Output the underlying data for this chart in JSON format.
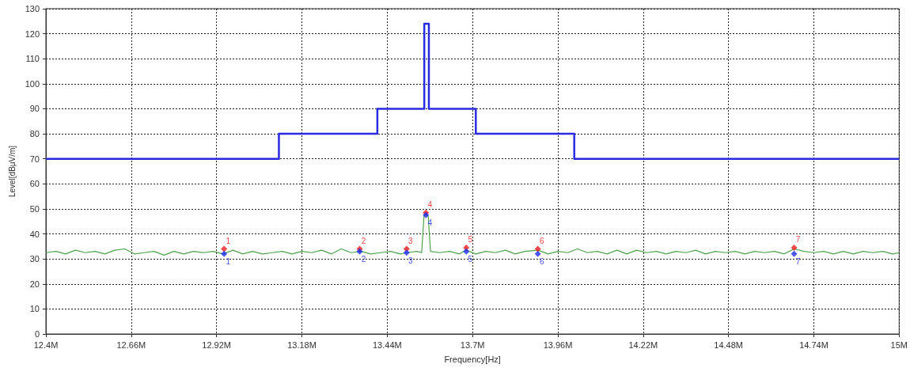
{
  "chart_data": {
    "type": "line",
    "xlabel": "Frequency[Hz]",
    "ylabel": "Level[dBμV/m]",
    "grid": true,
    "xlim": [
      12400000,
      15000000
    ],
    "xticks": [
      {
        "value": 12400000,
        "label": "12.4M"
      },
      {
        "value": 12660000,
        "label": "12.66M"
      },
      {
        "value": 12920000,
        "label": "12.92M"
      },
      {
        "value": 13180000,
        "label": "13.18M"
      },
      {
        "value": 13440000,
        "label": "13.44M"
      },
      {
        "value": 13700000,
        "label": "13.7M"
      },
      {
        "value": 13960000,
        "label": "13.96M"
      },
      {
        "value": 14220000,
        "label": "14.22M"
      },
      {
        "value": 14480000,
        "label": "14.48M"
      },
      {
        "value": 14740000,
        "label": "14.74M"
      },
      {
        "value": 15000000,
        "label": "15M"
      }
    ],
    "ylim": [
      0,
      130
    ],
    "yticks": [
      0,
      10,
      20,
      30,
      40,
      50,
      60,
      70,
      80,
      90,
      100,
      110,
      120,
      130
    ],
    "series": [
      {
        "type": "step",
        "color": "#2a2ae0",
        "marker": "none",
        "x": [
          12400000,
          13110000,
          13410000,
          13553000,
          13567000,
          13710000,
          14010000,
          15000000
        ],
        "values": [
          70,
          80,
          90,
          124,
          90,
          80,
          70,
          70
        ]
      },
      {
        "color": "#4ea24e",
        "marker": "none",
        "x": [
          12400000,
          12430000,
          12460000,
          12490000,
          12520000,
          12550000,
          12580000,
          12610000,
          12640000,
          12670000,
          12700000,
          12730000,
          12760000,
          12790000,
          12820000,
          12850000,
          12880000,
          12910000,
          12940000,
          12970000,
          13000000,
          13030000,
          13060000,
          13090000,
          13120000,
          13150000,
          13180000,
          13210000,
          13240000,
          13270000,
          13300000,
          13330000,
          13360000,
          13390000,
          13420000,
          13450000,
          13480000,
          13500000,
          13530000,
          13545000,
          13552000,
          13558000,
          13565000,
          13572000,
          13600000,
          13630000,
          13660000,
          13680000,
          13710000,
          13740000,
          13770000,
          13800000,
          13830000,
          13860000,
          13900000,
          13930000,
          13960000,
          13990000,
          14020000,
          14050000,
          14080000,
          14110000,
          14140000,
          14170000,
          14200000,
          14230000,
          14260000,
          14290000,
          14320000,
          14350000,
          14380000,
          14410000,
          14440000,
          14470000,
          14500000,
          14530000,
          14560000,
          14590000,
          14620000,
          14650000,
          14680000,
          14710000,
          14740000,
          14770000,
          14800000,
          14830000,
          14860000,
          14890000,
          14920000,
          14950000,
          14980000,
          15000000
        ],
        "values": [
          32.5,
          33,
          32,
          33.5,
          32.5,
          33,
          32,
          33.5,
          34,
          32,
          32.5,
          33,
          31.5,
          33,
          32,
          33,
          32.5,
          33,
          32,
          33.5,
          32,
          33,
          32,
          32.5,
          33,
          32,
          33,
          32.5,
          33.5,
          32,
          34,
          32.5,
          33,
          32,
          32.5,
          33,
          32,
          32.5,
          33,
          32.5,
          47,
          48,
          47,
          33,
          32.5,
          33,
          32,
          33.5,
          32,
          33,
          32.5,
          33.5,
          32,
          33,
          33.5,
          32,
          33,
          32.5,
          34,
          32.5,
          33,
          32,
          33.5,
          32,
          33.5,
          32.5,
          33,
          32,
          33,
          32.5,
          33.5,
          32,
          33,
          32.5,
          33,
          32,
          33,
          32.5,
          33,
          32,
          34,
          33,
          32.5,
          33,
          32,
          33,
          32,
          33,
          32.5,
          33,
          32,
          32.5
        ]
      },
      {
        "type": "scatter",
        "color": "#ee1c1c",
        "marker": "diamond",
        "x": [
          12943000,
          13356000,
          13499000,
          13558000,
          13681000,
          13899000,
          14680000
        ],
        "values": [
          34,
          34,
          34,
          48.5,
          34.5,
          34,
          34.5
        ]
      },
      {
        "type": "scatter",
        "color": "#1c2cee",
        "marker": "diamond",
        "x": [
          12943000,
          13356000,
          13499000,
          13558000,
          13681000,
          13899000,
          14680000
        ],
        "values": [
          32,
          33,
          32.5,
          47.5,
          33,
          32,
          32
        ]
      }
    ],
    "annotations": [
      {
        "text": "1",
        "x": 12943000,
        "y": 34
      },
      {
        "text": "2",
        "x": 13356000,
        "y": 34
      },
      {
        "text": "3",
        "x": 13499000,
        "y": 34
      },
      {
        "text": "4",
        "x": 13558000,
        "y": 48.5
      },
      {
        "text": "5",
        "x": 13681000,
        "y": 34.5
      },
      {
        "text": "6",
        "x": 13899000,
        "y": 34
      },
      {
        "text": "7",
        "x": 14680000,
        "y": 34.5
      },
      {
        "text": "1",
        "x": 12943000,
        "y": 32
      },
      {
        "text": "2",
        "x": 13356000,
        "y": 33
      },
      {
        "text": "3",
        "x": 13499000,
        "y": 32.5
      },
      {
        "text": "4",
        "x": 13558000,
        "y": 47.5
      },
      {
        "text": "5",
        "x": 13681000,
        "y": 33
      },
      {
        "text": "6",
        "x": 13899000,
        "y": 32
      },
      {
        "text": "7",
        "x": 14680000,
        "y": 32
      }
    ]
  }
}
